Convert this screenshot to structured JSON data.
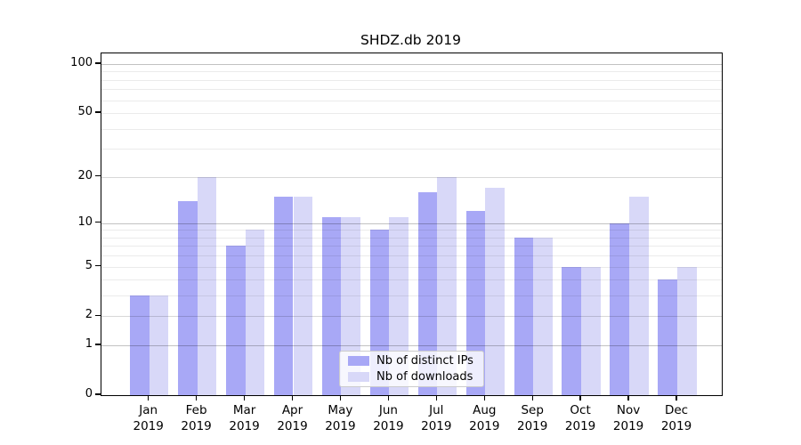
{
  "title": "SHDZ.db 2019",
  "chart_data": {
    "type": "bar",
    "title": "SHDZ.db 2019",
    "categories": [
      "Jan 2019",
      "Feb 2019",
      "Mar 2019",
      "Apr 2019",
      "May 2019",
      "Jun 2019",
      "Jul 2019",
      "Aug 2019",
      "Sep 2019",
      "Oct 2019",
      "Nov 2019",
      "Dec 2019"
    ],
    "series": [
      {
        "name": "Nb of distinct IPs",
        "color": "#a8a8f6",
        "values": [
          3,
          14,
          7,
          15,
          11,
          9,
          16,
          12,
          8,
          5,
          10,
          4
        ]
      },
      {
        "name": "Nb of downloads",
        "color": "#d8d8f8",
        "values": [
          3,
          20,
          9,
          15,
          11,
          11,
          20,
          17,
          8,
          5,
          15,
          5
        ]
      }
    ],
    "y_axis": {
      "scale": "log1p",
      "tick_labels": [
        0,
        1,
        2,
        5,
        10,
        20,
        50,
        100
      ],
      "max": 116.2,
      "grid_major": [
        1,
        10,
        100
      ],
      "grid_minor": [
        2,
        3,
        4,
        6,
        7,
        8,
        9,
        20,
        30,
        40,
        60,
        70,
        80,
        90
      ],
      "grid_minor_labeled": [
        2,
        5,
        20,
        50
      ]
    },
    "xlabel": "",
    "ylabel": "",
    "grid": true,
    "legend_position": "lower center",
    "colors": {
      "spine": "#000000",
      "grid_major": "#c2c2c2",
      "grid_minor": "#ebebeb",
      "legend_border": "#cccccc",
      "background": "#ffffff"
    }
  }
}
